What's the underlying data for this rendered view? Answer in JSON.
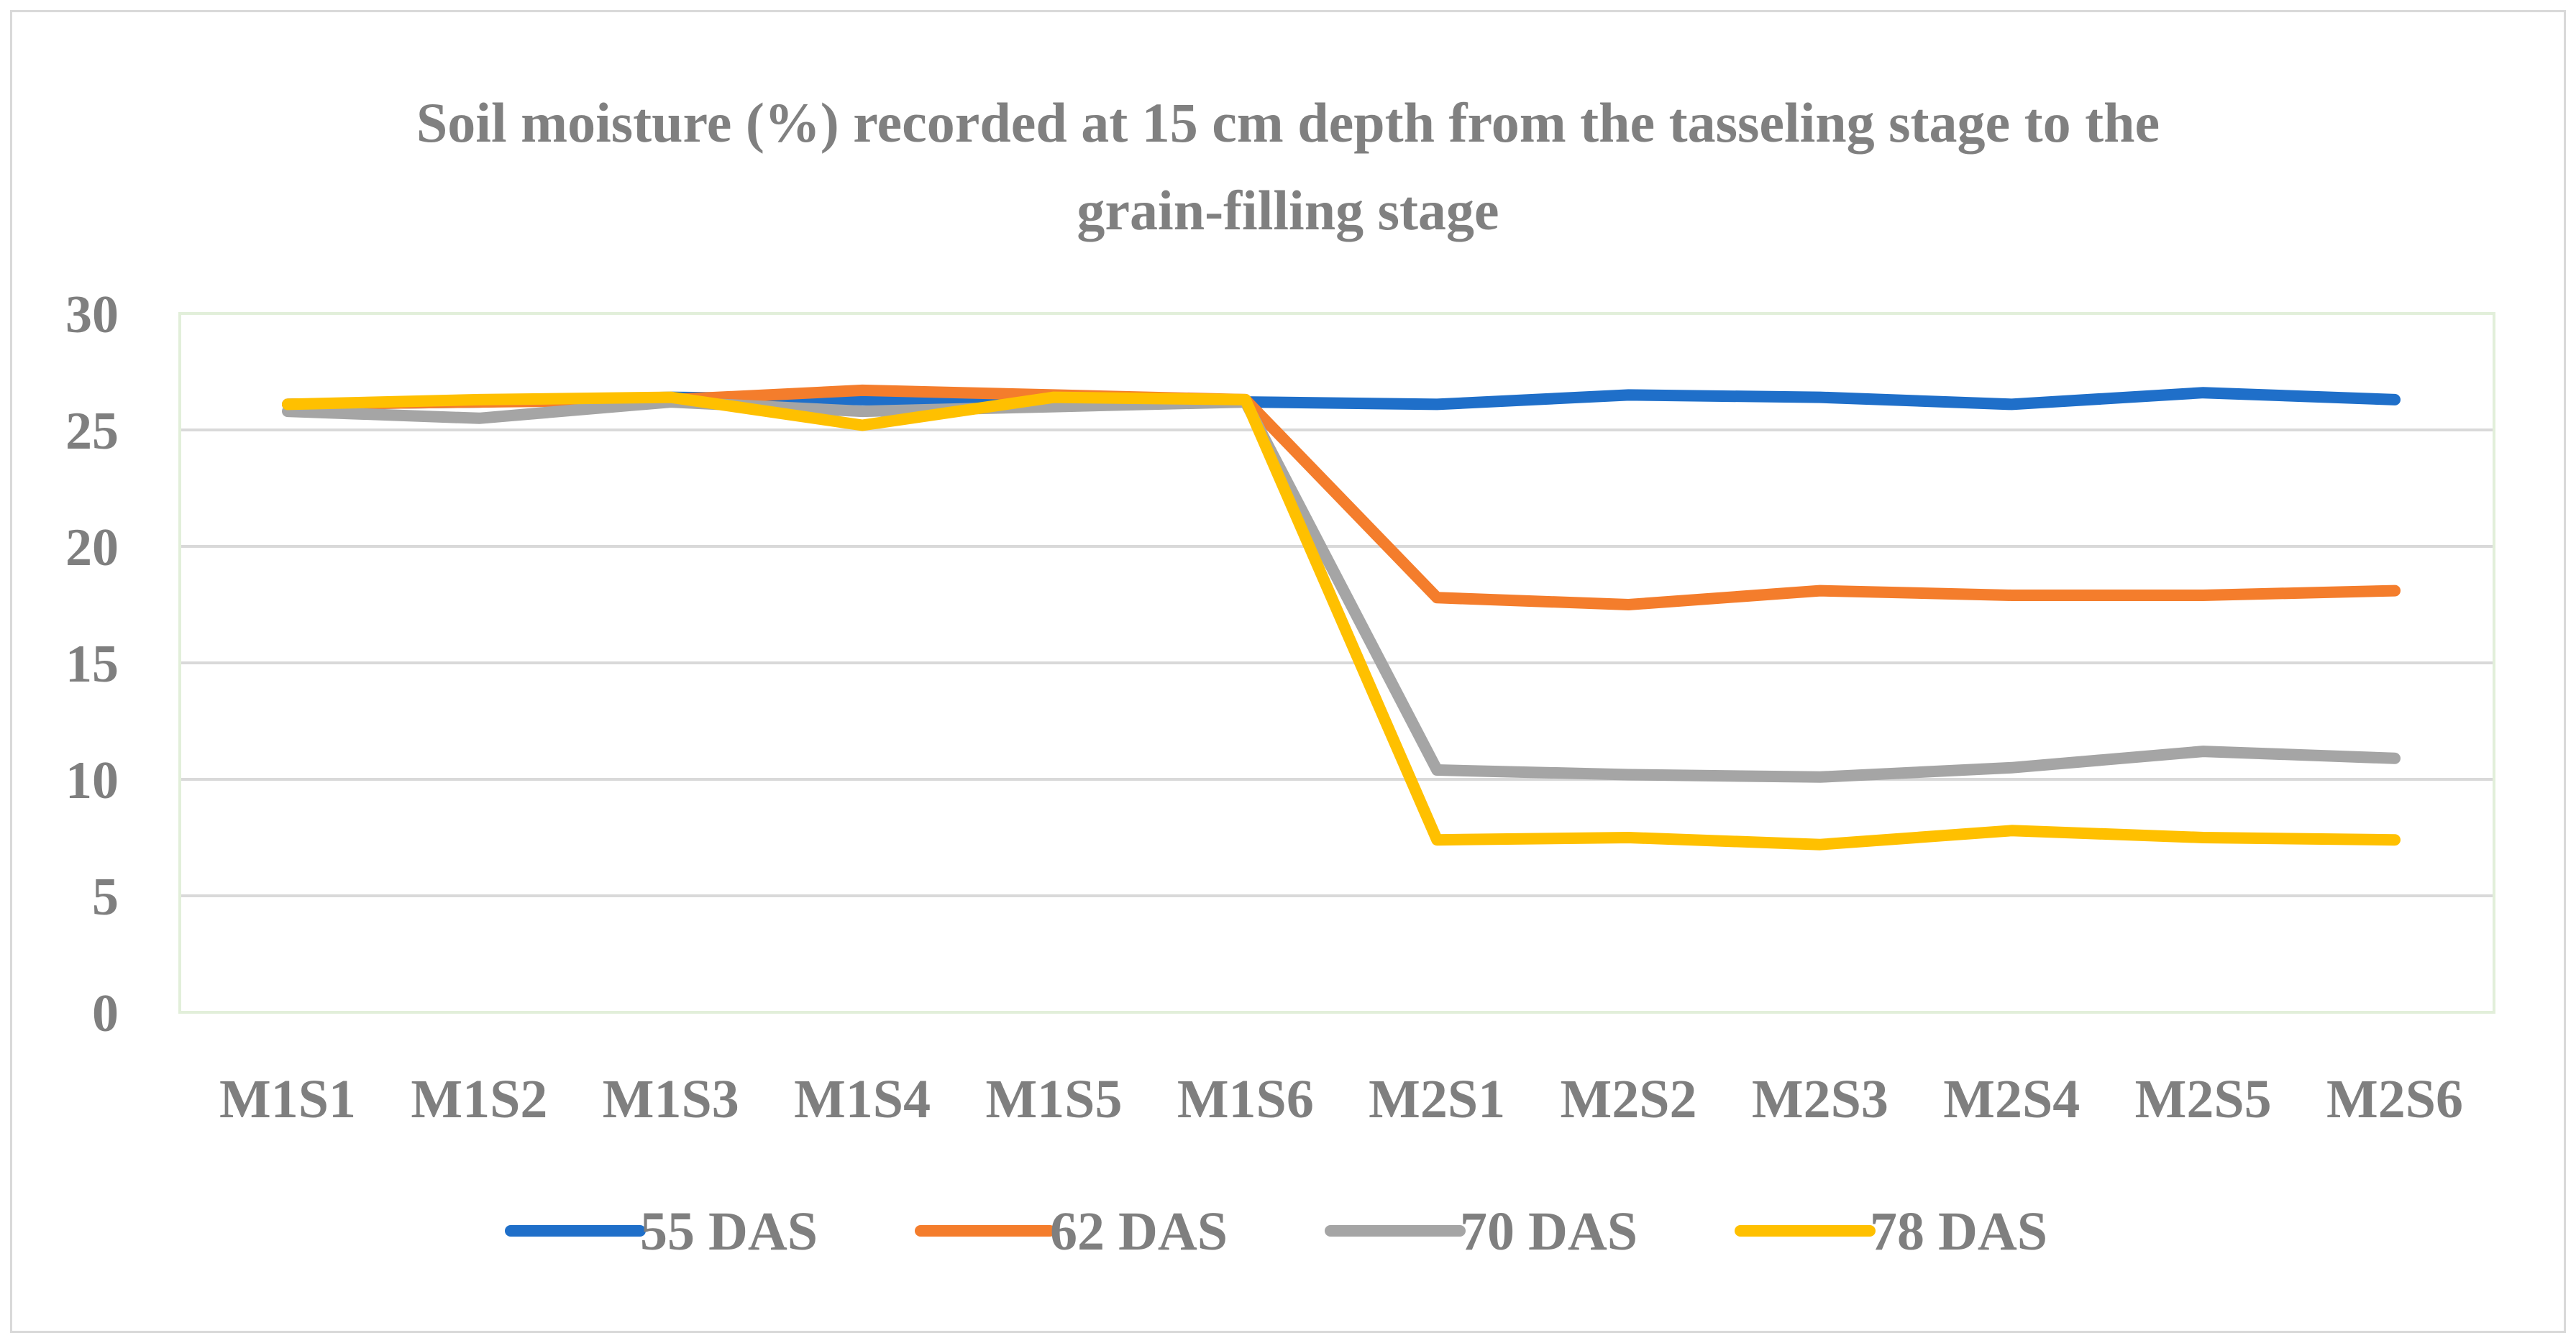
{
  "chart_data": {
    "type": "line",
    "title": "Soil moisture (%) recorded at 15 cm depth from the tasseling stage to the grain-filling stage",
    "title_lines": [
      "Soil moisture (%) recorded at 15 cm depth from the tasseling stage to the",
      "grain-filling stage"
    ],
    "xlabel": "",
    "ylabel": "",
    "ylim": [
      0,
      30
    ],
    "yticks": [
      "0",
      "5",
      "10",
      "15",
      "20",
      "25",
      "30"
    ],
    "categories": [
      "M1S1",
      "M1S2",
      "M1S3",
      "M1S4",
      "M1S5",
      "M1S6",
      "M2S1",
      "M2S2",
      "M2S3",
      "M2S4",
      "M2S5",
      "M2S6"
    ],
    "grid": true,
    "legend_position": "bottom",
    "series": [
      {
        "name": "55 DAS",
        "color": "#1f6fc9",
        "values": [
          26.1,
          26.2,
          26.4,
          26.3,
          26.2,
          26.2,
          26.1,
          26.5,
          26.4,
          26.1,
          26.6,
          26.3
        ]
      },
      {
        "name": "62 DAS",
        "color": "#f47d2c",
        "values": [
          26.1,
          26.2,
          26.3,
          26.7,
          26.5,
          26.3,
          17.8,
          17.5,
          18.1,
          17.9,
          17.9,
          18.1
        ]
      },
      {
        "name": "70 DAS",
        "color": "#a5a5a5",
        "values": [
          25.8,
          25.5,
          26.2,
          25.8,
          26.0,
          26.2,
          10.4,
          10.2,
          10.1,
          10.5,
          11.2,
          10.9
        ]
      },
      {
        "name": "78 DAS",
        "color": "#ffc000",
        "values": [
          26.1,
          26.3,
          26.4,
          25.2,
          26.4,
          26.3,
          7.4,
          7.5,
          7.2,
          7.8,
          7.5,
          7.4
        ]
      }
    ]
  }
}
